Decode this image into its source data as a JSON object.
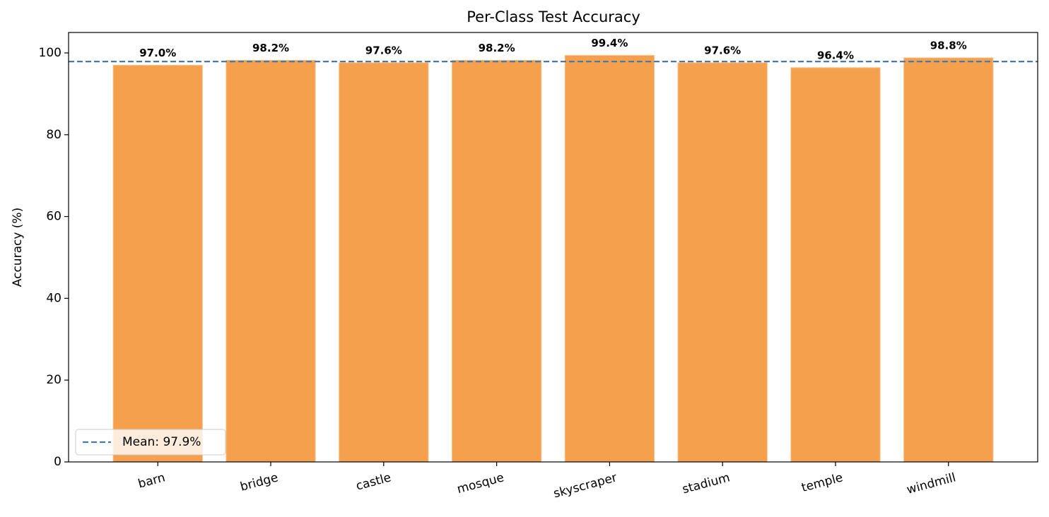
{
  "chart_data": {
    "type": "bar",
    "title": "Per-Class Test Accuracy",
    "y_label": "Accuracy (%)",
    "categories": [
      "barn",
      "bridge",
      "castle",
      "mosque",
      "skyscraper",
      "stadium",
      "temple",
      "windmill"
    ],
    "values": [
      97.0,
      98.2,
      97.6,
      98.2,
      99.4,
      97.6,
      96.4,
      98.8
    ],
    "value_labels": [
      "97.0%",
      "98.2%",
      "97.6%",
      "98.2%",
      "99.4%",
      "97.6%",
      "96.4%",
      "98.8%"
    ],
    "color": "#f4a04c",
    "ylim": [
      0,
      105
    ],
    "yticks": [
      0,
      20,
      40,
      60,
      80,
      100
    ],
    "reference_line": {
      "value": 97.9,
      "label": "Mean: 97.9%",
      "color": "#4a7ba7",
      "style": "dashed"
    },
    "legend": "lower left",
    "grid": false
  }
}
